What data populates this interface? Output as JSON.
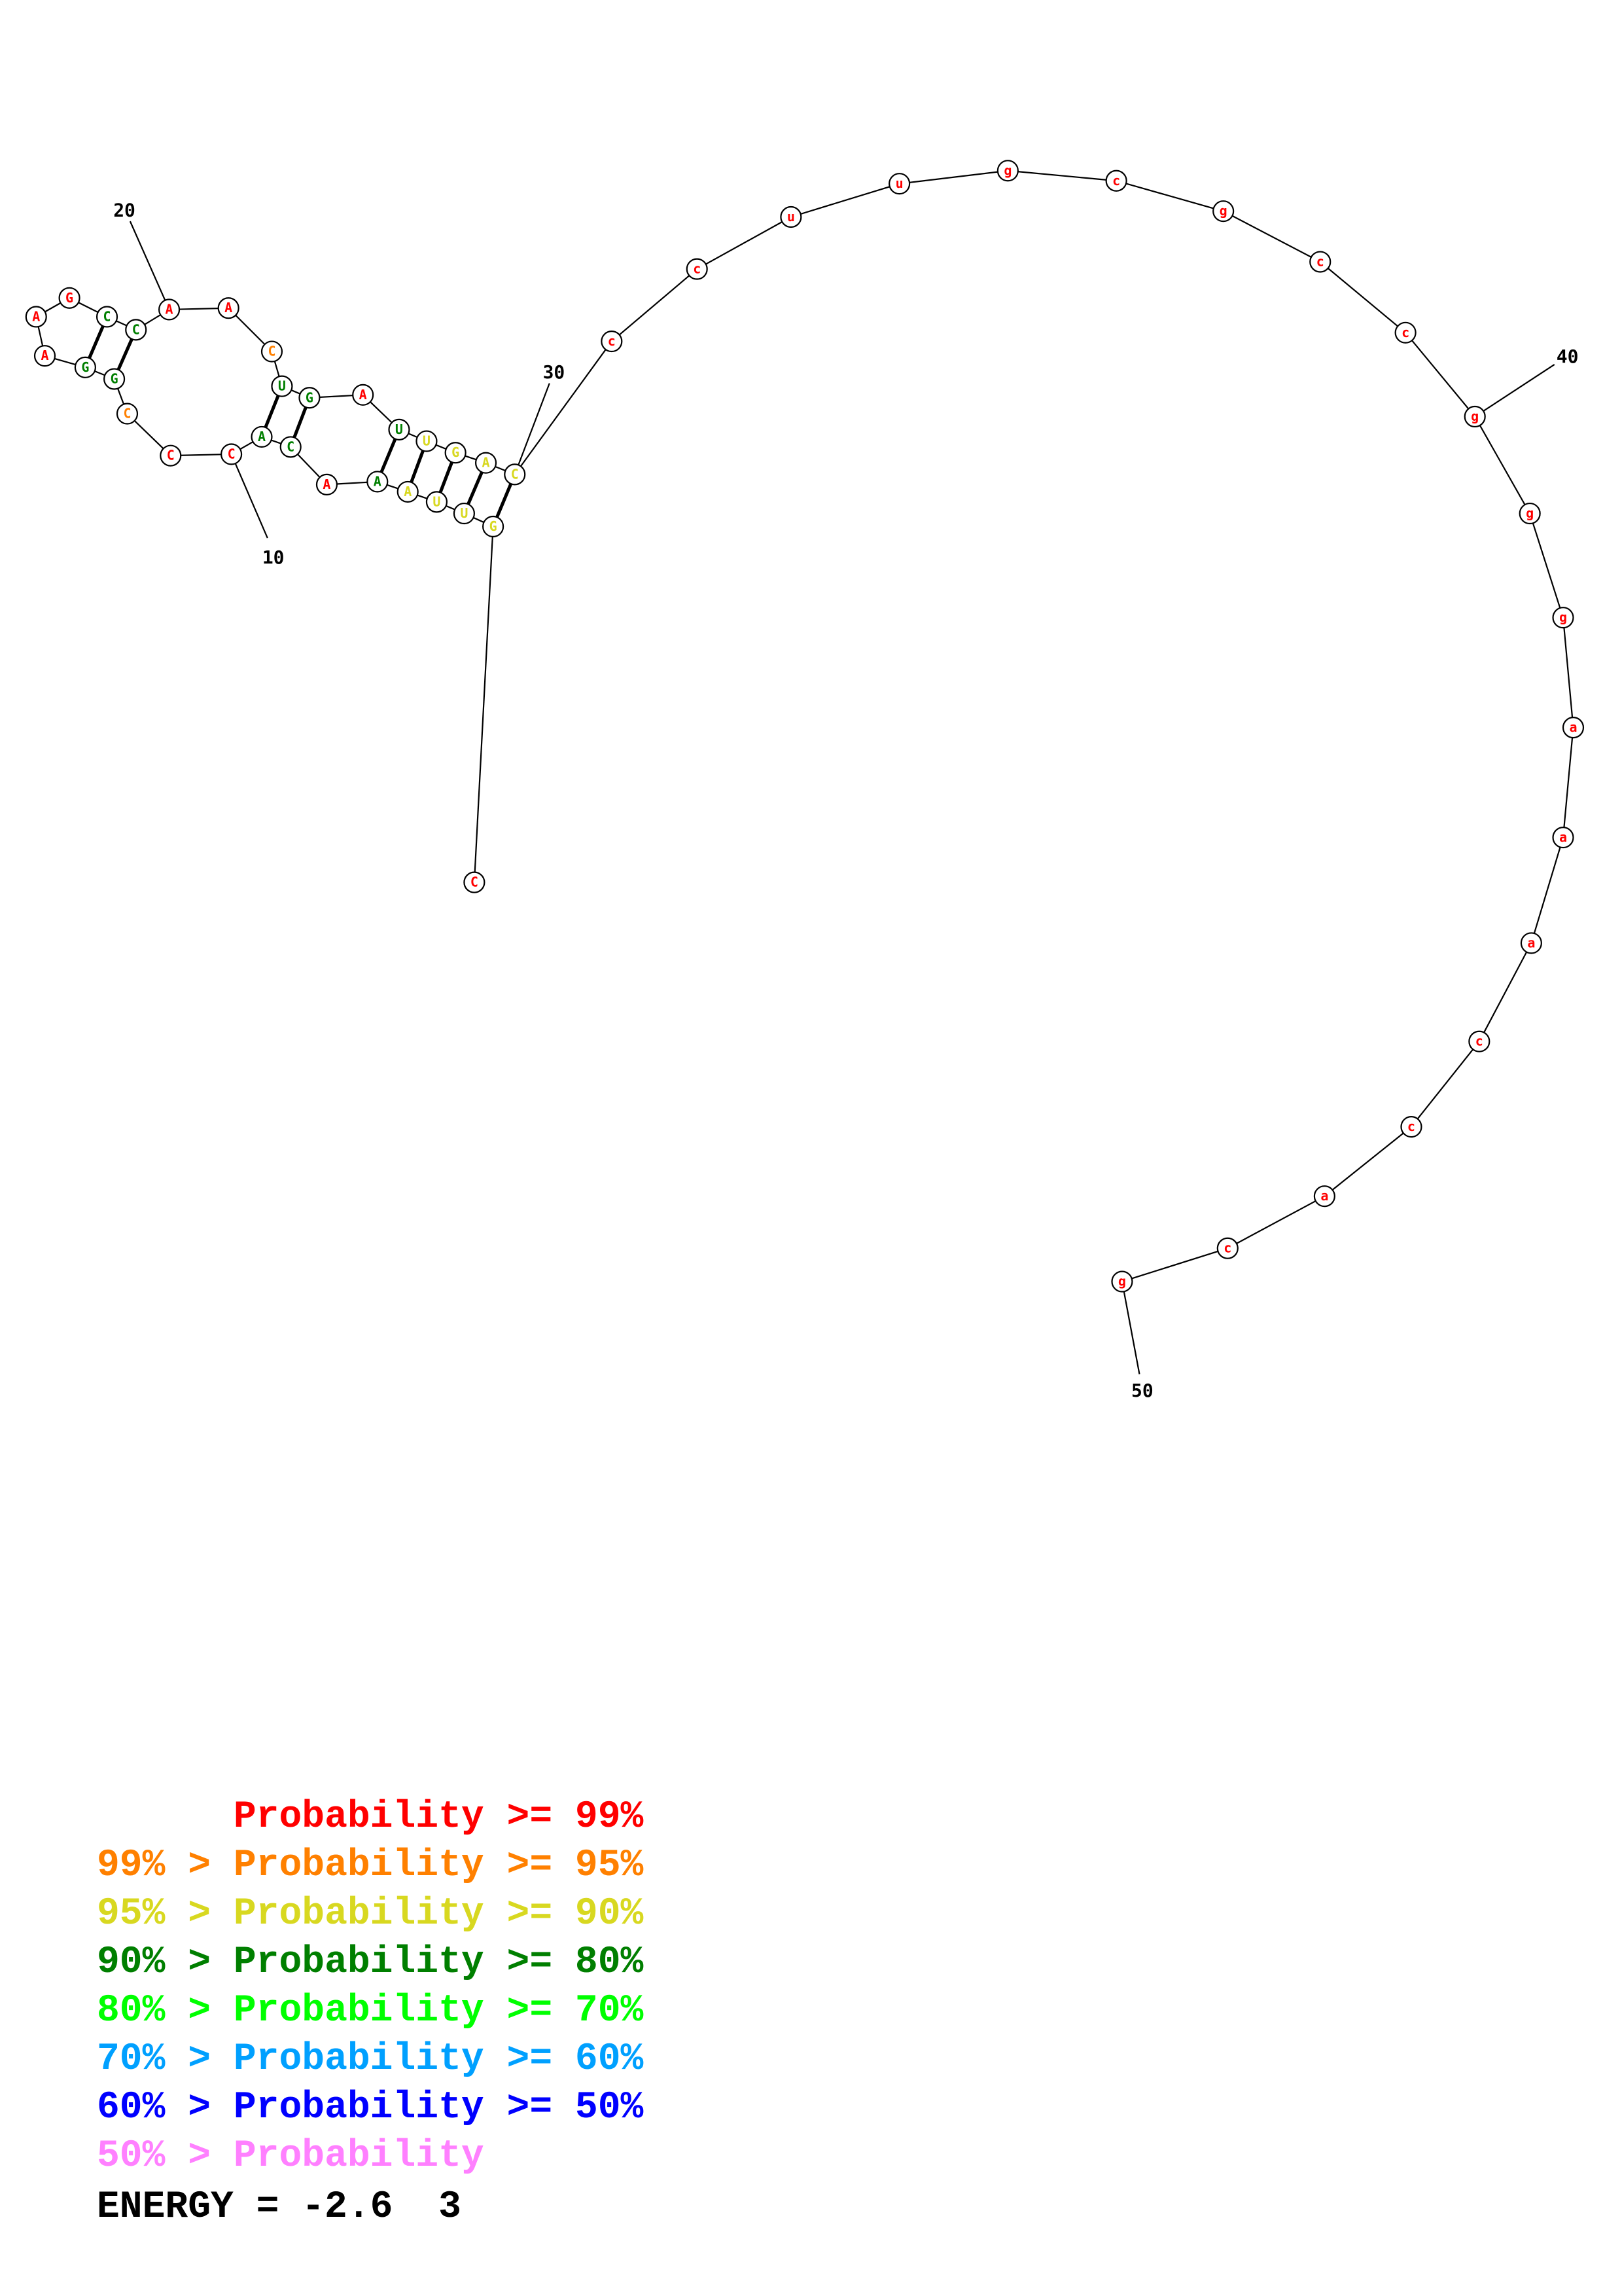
{
  "colors": {
    "p99": "#ff0000",
    "p95": "#ff8000",
    "p90": "#d8d820",
    "p80": "#007f00",
    "p70": "#00ff00",
    "p60": "#00a0ff",
    "p50": "#0000ff",
    "below50": "#ff80ff"
  },
  "structure": {
    "bases": [
      {
        "n": 1,
        "b": "C",
        "p": "p99"
      },
      {
        "n": 2,
        "b": "G",
        "p": "p90"
      },
      {
        "n": 3,
        "b": "U",
        "p": "p90"
      },
      {
        "n": 4,
        "b": "U",
        "p": "p90"
      },
      {
        "n": 5,
        "b": "A",
        "p": "p90"
      },
      {
        "n": 6,
        "b": "A",
        "p": "p80"
      },
      {
        "n": 7,
        "b": "A",
        "p": "p99"
      },
      {
        "n": 8,
        "b": "C",
        "p": "p80"
      },
      {
        "n": 9,
        "b": "A",
        "p": "p80"
      },
      {
        "n": 10,
        "b": "C",
        "p": "p99"
      },
      {
        "n": 11,
        "b": "C",
        "p": "p99"
      },
      {
        "n": 12,
        "b": "C",
        "p": "p95"
      },
      {
        "n": 13,
        "b": "G",
        "p": "p80"
      },
      {
        "n": 14,
        "b": "G",
        "p": "p80"
      },
      {
        "n": 15,
        "b": "A",
        "p": "p99"
      },
      {
        "n": 16,
        "b": "A",
        "p": "p99"
      },
      {
        "n": 17,
        "b": "G",
        "p": "p99"
      },
      {
        "n": 18,
        "b": "C",
        "p": "p80"
      },
      {
        "n": 19,
        "b": "C",
        "p": "p80"
      },
      {
        "n": 20,
        "b": "A",
        "p": "p99"
      },
      {
        "n": 21,
        "b": "A",
        "p": "p99"
      },
      {
        "n": 22,
        "b": "C",
        "p": "p95"
      },
      {
        "n": 23,
        "b": "U",
        "p": "p80"
      },
      {
        "n": 24,
        "b": "G",
        "p": "p80"
      },
      {
        "n": 25,
        "b": "A",
        "p": "p99"
      },
      {
        "n": 26,
        "b": "U",
        "p": "p80"
      },
      {
        "n": 27,
        "b": "U",
        "p": "p90"
      },
      {
        "n": 28,
        "b": "G",
        "p": "p90"
      },
      {
        "n": 29,
        "b": "A",
        "p": "p90"
      },
      {
        "n": 30,
        "b": "C",
        "p": "p90"
      },
      {
        "n": 31,
        "b": "c",
        "p": "p99"
      },
      {
        "n": 32,
        "b": "c",
        "p": "p99"
      },
      {
        "n": 33,
        "b": "u",
        "p": "p99"
      },
      {
        "n": 34,
        "b": "u",
        "p": "p99"
      },
      {
        "n": 35,
        "b": "g",
        "p": "p99"
      },
      {
        "n": 36,
        "b": "c",
        "p": "p99"
      },
      {
        "n": 37,
        "b": "g",
        "p": "p99"
      },
      {
        "n": 38,
        "b": "c",
        "p": "p99"
      },
      {
        "n": 39,
        "b": "c",
        "p": "p99"
      },
      {
        "n": 40,
        "b": "g",
        "p": "p99"
      },
      {
        "n": 41,
        "b": "g",
        "p": "p99"
      },
      {
        "n": 42,
        "b": "g",
        "p": "p99"
      },
      {
        "n": 43,
        "b": "a",
        "p": "p99"
      },
      {
        "n": 44,
        "b": "a",
        "p": "p99"
      },
      {
        "n": 45,
        "b": "a",
        "p": "p99"
      },
      {
        "n": 46,
        "b": "c",
        "p": "p99"
      },
      {
        "n": 47,
        "b": "c",
        "p": "p99"
      },
      {
        "n": 48,
        "b": "a",
        "p": "p99"
      },
      {
        "n": 49,
        "b": "c",
        "p": "p99"
      },
      {
        "n": 50,
        "b": "g",
        "p": "p99"
      }
    ],
    "pairs": [
      [
        2,
        30
      ],
      [
        3,
        29
      ],
      [
        4,
        28
      ],
      [
        5,
        27
      ],
      [
        6,
        26
      ],
      [
        8,
        24
      ],
      [
        9,
        23
      ],
      [
        13,
        19
      ],
      [
        14,
        18
      ]
    ],
    "ticks": [
      "10",
      "20",
      "30",
      "40",
      "50"
    ]
  },
  "legend": [
    {
      "prefix": "    ",
      "text": "Probability >= 99%",
      "color_key": "p99"
    },
    {
      "prefix": "99% > ",
      "text": "Probability >= 95%",
      "color_key": "p95"
    },
    {
      "prefix": "95% > ",
      "text": "Probability >= 90%",
      "color_key": "p90"
    },
    {
      "prefix": "90% > ",
      "text": "Probability >= 80%",
      "color_key": "p80"
    },
    {
      "prefix": "80% > ",
      "text": "Probability >= 70%",
      "color_key": "p70"
    },
    {
      "prefix": "70% > ",
      "text": "Probability >= 60%",
      "color_key": "p60"
    },
    {
      "prefix": "60% > ",
      "text": "Probability >= 50%",
      "color_key": "p50"
    },
    {
      "prefix": "50% > ",
      "text": "Probability",
      "color_key": "below50"
    }
  ],
  "energy": "ENERGY = -2.6  3"
}
